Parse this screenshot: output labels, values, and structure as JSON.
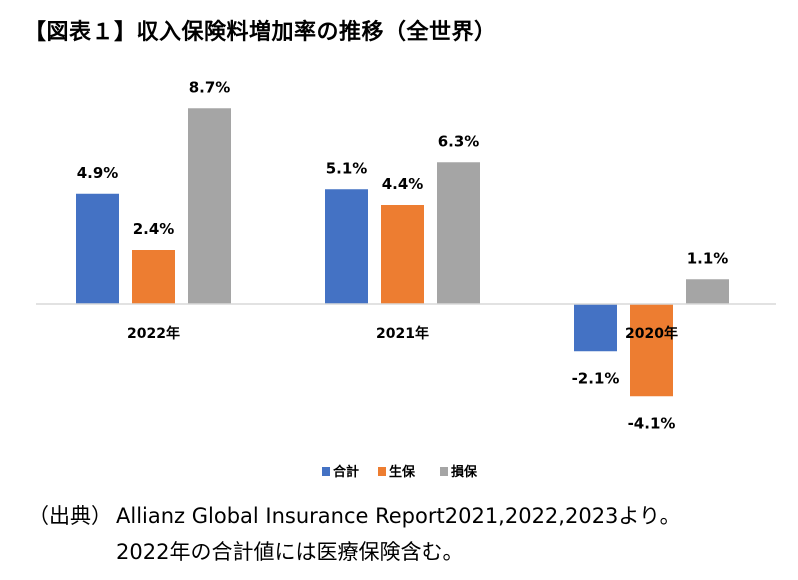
{
  "title": "【図表１】収入保険料増加率の推移（全世界）",
  "chart_data": {
    "type": "bar",
    "categories": [
      "2022年",
      "2021年",
      "2020年"
    ],
    "series": [
      {
        "name": "合計",
        "values": [
          4.9,
          5.1,
          -2.1
        ],
        "labels": [
          "4.9%",
          "5.1%",
          "-2.1%"
        ],
        "color": "#4472C4"
      },
      {
        "name": "生保",
        "values": [
          2.4,
          4.4,
          -4.1
        ],
        "labels": [
          "2.4%",
          "4.4%",
          "-4.1%"
        ],
        "color": "#ED7D31"
      },
      {
        "name": "損保",
        "values": [
          8.7,
          6.3,
          1.1
        ],
        "labels": [
          "8.7%",
          "6.3%",
          "1.1%"
        ],
        "color": "#A5A5A5"
      }
    ],
    "ylim": [
      -5,
      9
    ],
    "grid": false,
    "legend": "bottom"
  },
  "source": {
    "label": "（出典）",
    "line1": "Allianz Global Insurance Report2021,2022,2023より。",
    "line2": "2022年の合計値には医療保険含む。"
  }
}
